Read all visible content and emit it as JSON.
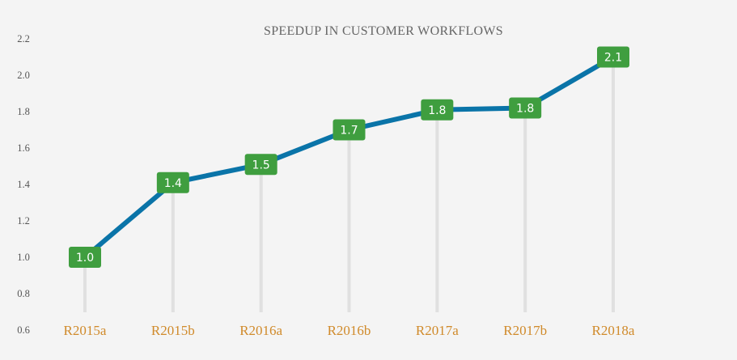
{
  "chart_data": {
    "type": "line",
    "title": "SPEEDUP IN CUSTOMER WORKFLOWS",
    "xlabel": "",
    "ylabel": "",
    "categories": [
      "R2015a",
      "R2015b",
      "R2016a",
      "R2016b",
      "R2017a",
      "R2017b",
      "R2018a"
    ],
    "series": [
      {
        "values": [
          1.0,
          1.41,
          1.51,
          1.7,
          1.81,
          1.82,
          2.1
        ],
        "data_labels": [
          "1.0",
          "1.4",
          "1.5",
          "1.7",
          "1.8",
          "1.8",
          "2.1"
        ]
      }
    ],
    "ylim": [
      0.6,
      2.2
    ],
    "yticks": [
      "0.6",
      "0.8",
      "1.0",
      "1.2",
      "1.4",
      "1.6",
      "1.8",
      "2.0",
      "2.2"
    ],
    "grid": false,
    "legend": "none",
    "colors": {
      "line": "#0a74a8",
      "label_bg": "#3f9e3f",
      "label_text": "#ffffff",
      "drop_line": "#e0e0e0",
      "category_text": "#d08a2a",
      "title_text": "#666666",
      "tick_text": "#555555",
      "background": "#f4f4f4"
    }
  }
}
